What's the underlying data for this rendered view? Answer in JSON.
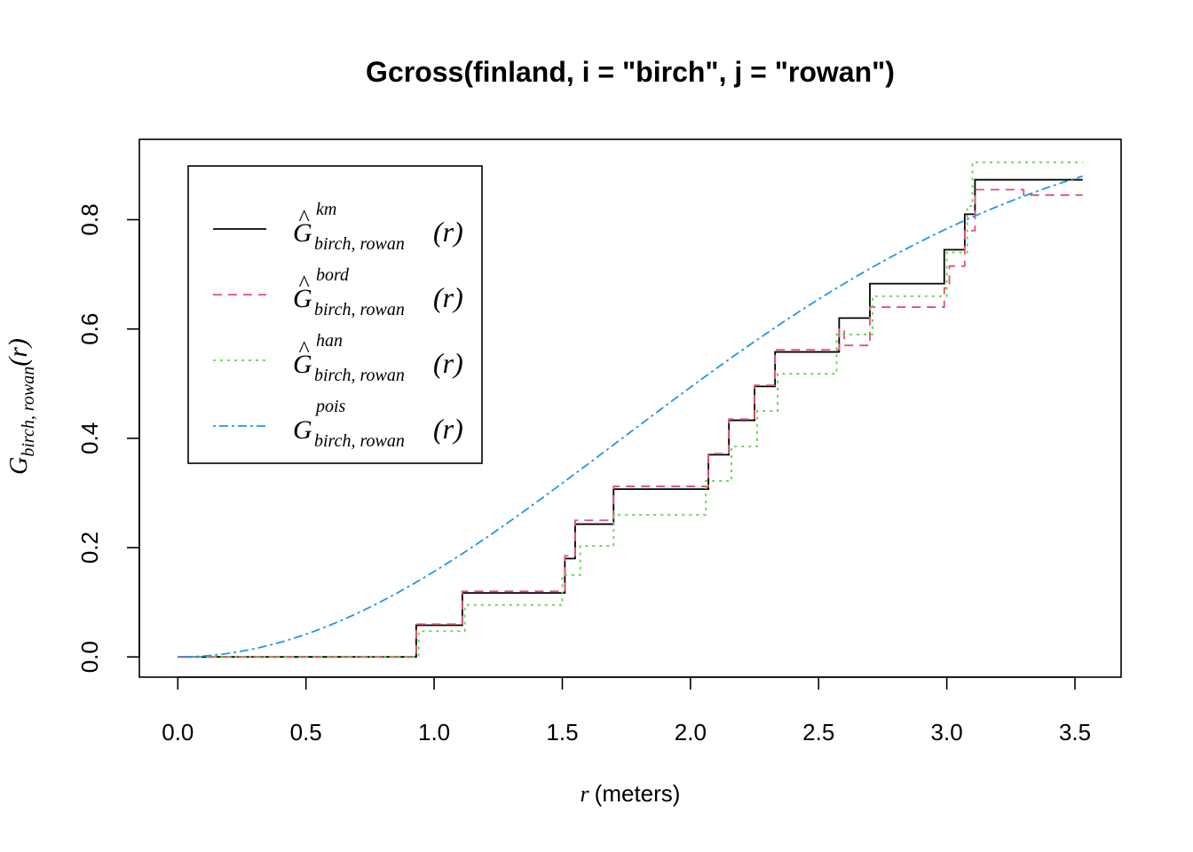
{
  "chart_data": {
    "type": "line",
    "title": "Gcross(finland, i = \"birch\", j = \"rowan\")",
    "xlabel": {
      "var": "r",
      "unit": "(meters)"
    },
    "ylabel": {
      "base": "G",
      "sub": "birch, rowan",
      "arg": "(r)"
    },
    "xlim": [
      -0.15,
      3.68
    ],
    "ylim": [
      -0.037,
      0.947
    ],
    "xticks": [
      0.0,
      0.5,
      1.0,
      1.5,
      2.0,
      2.5,
      3.0,
      3.5
    ],
    "xtick_labels": [
      "0.0",
      "0.5",
      "1.0",
      "1.5",
      "2.0",
      "2.5",
      "3.0",
      "3.5"
    ],
    "yticks": [
      0.0,
      0.2,
      0.4,
      0.6,
      0.8
    ],
    "ytick_labels": [
      "0.0",
      "0.2",
      "0.4",
      "0.6",
      "0.8"
    ],
    "grid": false,
    "legend_position": "top-left",
    "series": [
      {
        "key": "km",
        "legend": {
          "hat": true,
          "sup": "km",
          "sub": "birch, rowan",
          "arg": "(r)"
        },
        "color": "#000000",
        "dash": "none",
        "step": true,
        "points": [
          [
            0.0,
            0.0
          ],
          [
            0.93,
            0.0
          ],
          [
            0.93,
            0.058
          ],
          [
            1.11,
            0.058
          ],
          [
            1.11,
            0.117
          ],
          [
            1.51,
            0.117
          ],
          [
            1.51,
            0.18
          ],
          [
            1.55,
            0.18
          ],
          [
            1.55,
            0.243
          ],
          [
            1.7,
            0.243
          ],
          [
            1.7,
            0.307
          ],
          [
            2.07,
            0.307
          ],
          [
            2.07,
            0.37
          ],
          [
            2.15,
            0.37
          ],
          [
            2.15,
            0.433
          ],
          [
            2.25,
            0.433
          ],
          [
            2.25,
            0.495
          ],
          [
            2.33,
            0.495
          ],
          [
            2.33,
            0.558
          ],
          [
            2.58,
            0.558
          ],
          [
            2.58,
            0.62
          ],
          [
            2.7,
            0.62
          ],
          [
            2.7,
            0.683
          ],
          [
            2.99,
            0.683
          ],
          [
            2.99,
            0.745
          ],
          [
            3.07,
            0.745
          ],
          [
            3.07,
            0.81
          ],
          [
            3.11,
            0.81
          ],
          [
            3.11,
            0.873
          ],
          [
            3.53,
            0.873
          ]
        ]
      },
      {
        "key": "bord",
        "legend": {
          "hat": true,
          "sup": "bord",
          "sub": "birch, rowan",
          "arg": "(r)"
        },
        "color": "#df536b",
        "dash": "10,7",
        "step": true,
        "points": [
          [
            0.0,
            0.0
          ],
          [
            0.93,
            0.0
          ],
          [
            0.93,
            0.06
          ],
          [
            1.11,
            0.06
          ],
          [
            1.11,
            0.12
          ],
          [
            1.51,
            0.12
          ],
          [
            1.51,
            0.185
          ],
          [
            1.55,
            0.185
          ],
          [
            1.55,
            0.25
          ],
          [
            1.7,
            0.25
          ],
          [
            1.7,
            0.312
          ],
          [
            2.07,
            0.312
          ],
          [
            2.07,
            0.372
          ],
          [
            2.15,
            0.372
          ],
          [
            2.15,
            0.435
          ],
          [
            2.25,
            0.435
          ],
          [
            2.25,
            0.497
          ],
          [
            2.33,
            0.497
          ],
          [
            2.33,
            0.562
          ],
          [
            2.58,
            0.562
          ],
          [
            2.58,
            0.6
          ],
          [
            2.6,
            0.6
          ],
          [
            2.6,
            0.57
          ],
          [
            2.7,
            0.57
          ],
          [
            2.7,
            0.64
          ],
          [
            2.99,
            0.64
          ],
          [
            2.99,
            0.675
          ],
          [
            3.01,
            0.675
          ],
          [
            3.01,
            0.715
          ],
          [
            3.07,
            0.715
          ],
          [
            3.07,
            0.78
          ],
          [
            3.11,
            0.78
          ],
          [
            3.11,
            0.855
          ],
          [
            3.3,
            0.855
          ],
          [
            3.3,
            0.845
          ],
          [
            3.53,
            0.845
          ]
        ]
      },
      {
        "key": "han",
        "legend": {
          "hat": true,
          "sup": "han",
          "sub": "birch, rowan",
          "arg": "(r)"
        },
        "color": "#61d04f",
        "dash": "3,5",
        "step": true,
        "points": [
          [
            0.0,
            0.0
          ],
          [
            0.94,
            0.0
          ],
          [
            0.94,
            0.047
          ],
          [
            1.12,
            0.047
          ],
          [
            1.12,
            0.095
          ],
          [
            1.5,
            0.095
          ],
          [
            1.5,
            0.15
          ],
          [
            1.57,
            0.15
          ],
          [
            1.57,
            0.203
          ],
          [
            1.7,
            0.203
          ],
          [
            1.7,
            0.26
          ],
          [
            2.06,
            0.26
          ],
          [
            2.06,
            0.322
          ],
          [
            2.16,
            0.322
          ],
          [
            2.16,
            0.385
          ],
          [
            2.26,
            0.385
          ],
          [
            2.26,
            0.45
          ],
          [
            2.34,
            0.45
          ],
          [
            2.34,
            0.518
          ],
          [
            2.57,
            0.518
          ],
          [
            2.57,
            0.59
          ],
          [
            2.71,
            0.59
          ],
          [
            2.71,
            0.66
          ],
          [
            3.0,
            0.66
          ],
          [
            3.0,
            0.74
          ],
          [
            3.08,
            0.74
          ],
          [
            3.08,
            0.825
          ],
          [
            3.1,
            0.825
          ],
          [
            3.1,
            0.905
          ],
          [
            3.53,
            0.905
          ]
        ]
      },
      {
        "key": "pois",
        "legend": {
          "hat": false,
          "sup": "pois",
          "sub": "birch, rowan",
          "arg": "(r)"
        },
        "color": "#2297e6",
        "dash": "3,4,10,4",
        "step": false,
        "formula": "1 - exp(-0.17 * r^2)",
        "r_max": 3.53
      }
    ]
  }
}
